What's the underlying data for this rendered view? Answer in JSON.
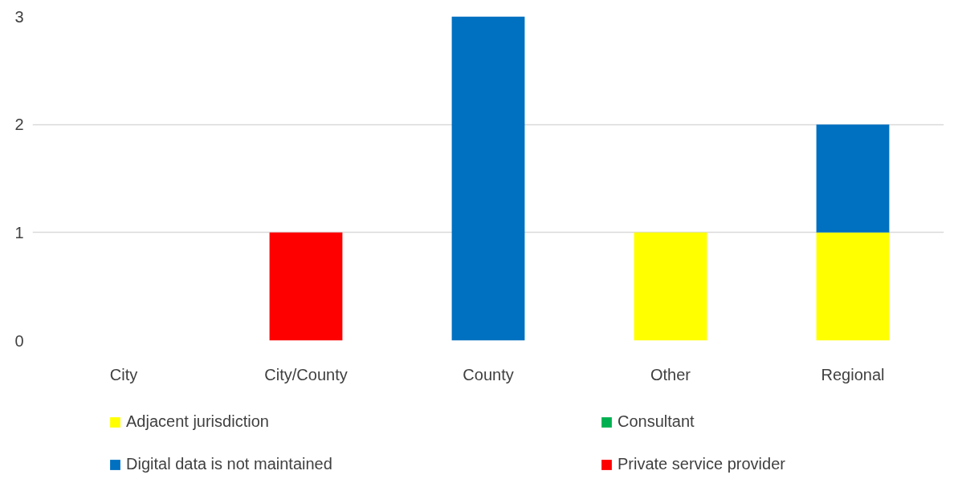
{
  "chart_data": {
    "type": "bar",
    "stacked": true,
    "categories": [
      "City",
      "City/County",
      "County",
      "Other",
      "Regional"
    ],
    "series": [
      {
        "name": "Adjacent jurisdiction",
        "color": "#ffff00",
        "values": [
          0,
          0,
          0,
          1,
          1
        ]
      },
      {
        "name": "Consultant",
        "color": "#00b050",
        "values": [
          0,
          0,
          0,
          0,
          0
        ]
      },
      {
        "name": "Digital data is not maintained",
        "color": "#0070c0",
        "values": [
          0,
          0,
          3,
          0,
          1
        ]
      },
      {
        "name": "Private service provider",
        "color": "#ff0000",
        "values": [
          0,
          1,
          0,
          0,
          0
        ]
      }
    ],
    "ylim": [
      0,
      3
    ],
    "yticks": [
      0,
      1,
      2,
      3
    ],
    "grid": "y",
    "legend": "bottom"
  }
}
